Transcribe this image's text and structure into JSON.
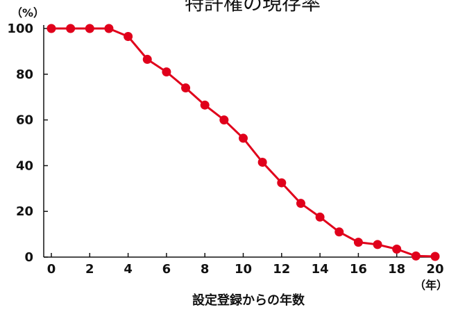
{
  "chart_data": {
    "type": "line",
    "title": "特許権の現存率",
    "xlabel": "設定登録からの年数",
    "x_unit": "（年）",
    "y_unit": "（%）",
    "xlim": [
      0,
      20
    ],
    "ylim": [
      0,
      100
    ],
    "xticks": [
      "0",
      "2",
      "4",
      "6",
      "8",
      "10",
      "12",
      "14",
      "16",
      "18",
      "20"
    ],
    "yticks": [
      "0",
      "20",
      "40",
      "60",
      "80",
      "100"
    ],
    "grid": false,
    "color": "#e0001b",
    "series": [
      {
        "x": [
          0,
          1,
          2,
          3,
          4,
          5,
          6,
          7,
          8,
          9,
          10,
          11,
          12,
          13,
          14,
          15,
          16,
          17,
          18,
          19,
          20
        ],
        "y": [
          100,
          100,
          100,
          100,
          96.5,
          86.5,
          81,
          74,
          66.5,
          60,
          52,
          41.5,
          32.5,
          23.5,
          17.5,
          11,
          6.5,
          5.5,
          3.5,
          0.5,
          0.3
        ]
      }
    ]
  }
}
